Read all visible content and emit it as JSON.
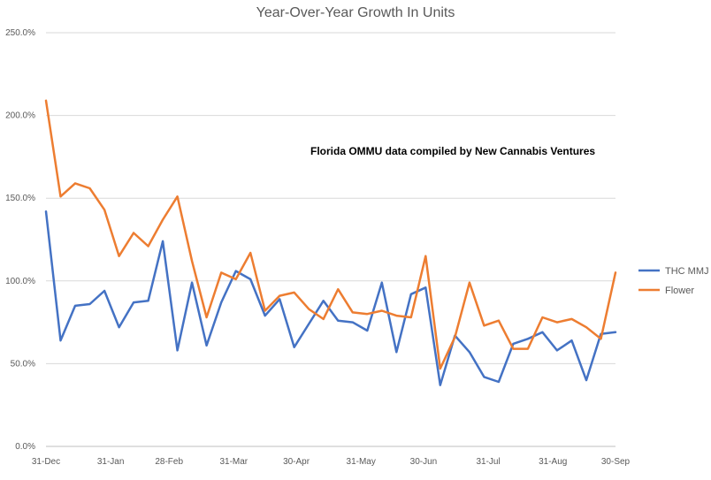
{
  "chart_data": {
    "type": "line",
    "title": "Year-Over-Year Growth In Units",
    "annotation": "Florida OMMU data compiled by New Cannabis Ventures",
    "xlabel": "",
    "ylabel": "",
    "ylim": [
      0,
      2.5
    ],
    "y_ticks": [
      "0.0%",
      "50.0%",
      "100.0%",
      "150.0%",
      "200.0%",
      "250.0%"
    ],
    "x_ticks": [
      "31-Dec",
      "31-Jan",
      "28-Feb",
      "31-Mar",
      "30-Apr",
      "31-May",
      "30-Jun",
      "31-Jul",
      "31-Aug",
      "30-Sep"
    ],
    "x": [
      "2018-12-31",
      "2019-01-07",
      "2019-01-14",
      "2019-01-21",
      "2019-01-28",
      "2019-02-04",
      "2019-02-11",
      "2019-02-18",
      "2019-02-25",
      "2019-03-04",
      "2019-03-11",
      "2019-03-18",
      "2019-03-25",
      "2019-04-01",
      "2019-04-08",
      "2019-04-15",
      "2019-04-22",
      "2019-04-29",
      "2019-05-06",
      "2019-05-13",
      "2019-05-20",
      "2019-05-27",
      "2019-06-03",
      "2019-06-10",
      "2019-06-17",
      "2019-06-24",
      "2019-07-01",
      "2019-07-08",
      "2019-07-15",
      "2019-07-22",
      "2019-07-29",
      "2019-08-05",
      "2019-08-12",
      "2019-08-19",
      "2019-08-26",
      "2019-09-02",
      "2019-09-09",
      "2019-09-16",
      "2019-09-23",
      "2019-09-30"
    ],
    "grid": true,
    "legend_position": "right",
    "series": [
      {
        "name": "THC MMJ",
        "color": "#4472c4",
        "values": [
          1.42,
          0.64,
          0.85,
          0.86,
          0.94,
          0.72,
          0.87,
          0.88,
          1.24,
          0.58,
          0.99,
          0.61,
          0.87,
          1.06,
          1.01,
          0.79,
          0.89,
          0.6,
          0.74,
          0.88,
          0.76,
          0.75,
          0.7,
          0.99,
          0.57,
          0.92,
          0.96,
          0.37,
          0.67,
          0.57,
          0.42,
          0.39,
          0.62,
          0.65,
          0.69,
          0.58,
          0.64,
          0.4,
          0.68,
          0.69
        ]
      },
      {
        "name": "Flower",
        "color": "#ed7d31",
        "values": [
          2.09,
          1.51,
          1.59,
          1.56,
          1.43,
          1.15,
          1.29,
          1.21,
          1.37,
          1.51,
          1.12,
          0.78,
          1.05,
          1.01,
          1.17,
          0.82,
          0.91,
          0.93,
          0.83,
          0.77,
          0.95,
          0.81,
          0.8,
          0.82,
          0.79,
          0.78,
          1.15,
          0.47,
          0.66,
          0.99,
          0.73,
          0.76,
          0.59,
          0.59,
          0.78,
          0.75,
          0.77,
          0.72,
          0.65,
          1.05
        ]
      }
    ]
  }
}
